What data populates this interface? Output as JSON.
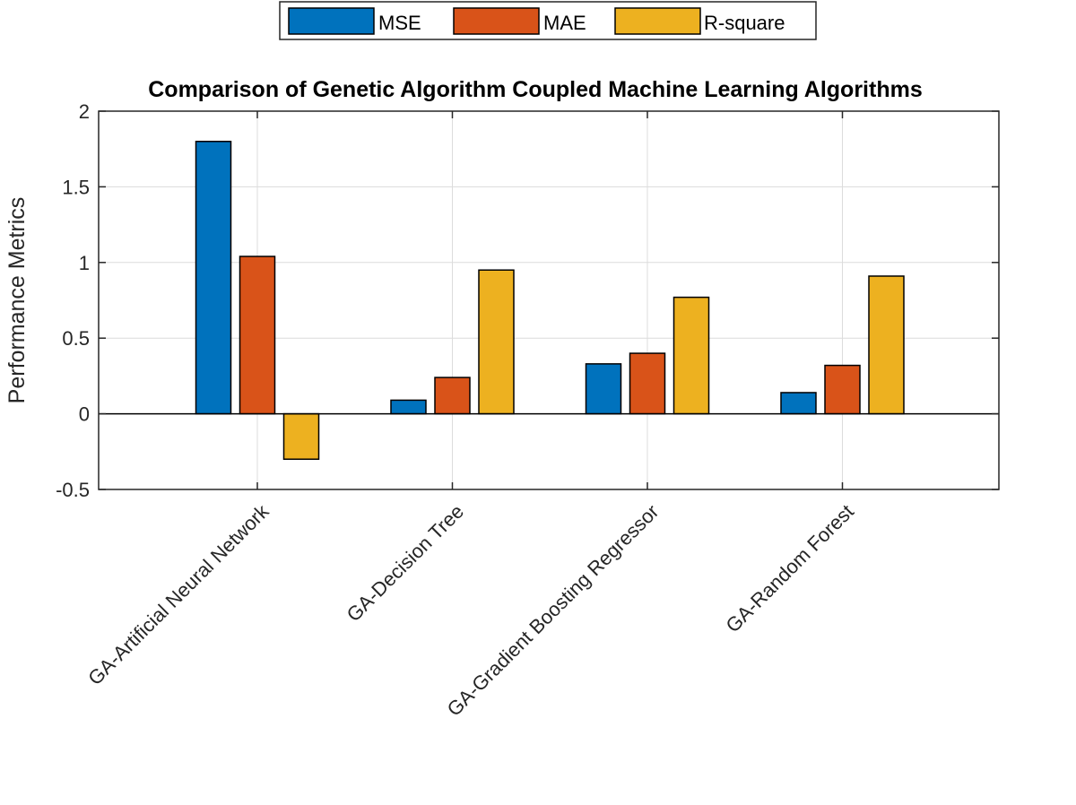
{
  "chart_data": {
    "type": "bar",
    "title": "Comparison of Genetic Algorithm Coupled Machine Learning Algorithms",
    "xlabel": "",
    "ylabel": "Performance Metrics",
    "categories": [
      "GA-Artificial Neural Network",
      "GA-Decision Tree",
      "GA-Gradient Boosting Regressor",
      "GA-Random Forest"
    ],
    "series": [
      {
        "name": "MSE",
        "color": "#0072BD",
        "values": [
          1.8,
          0.09,
          0.33,
          0.14
        ]
      },
      {
        "name": "MAE",
        "color": "#D95319",
        "values": [
          1.04,
          0.24,
          0.4,
          0.32
        ]
      },
      {
        "name": "R-square",
        "color": "#EDB120",
        "values": [
          -0.3,
          0.95,
          0.77,
          0.91
        ]
      }
    ],
    "ylim": [
      -0.5,
      2
    ],
    "yticks": [
      -0.5,
      0,
      0.5,
      1,
      1.5,
      2
    ],
    "ytick_labels": [
      "-0.5",
      "0",
      "0.5",
      "1",
      "1.5",
      "2"
    ],
    "grid": true,
    "legend_position": "top"
  }
}
